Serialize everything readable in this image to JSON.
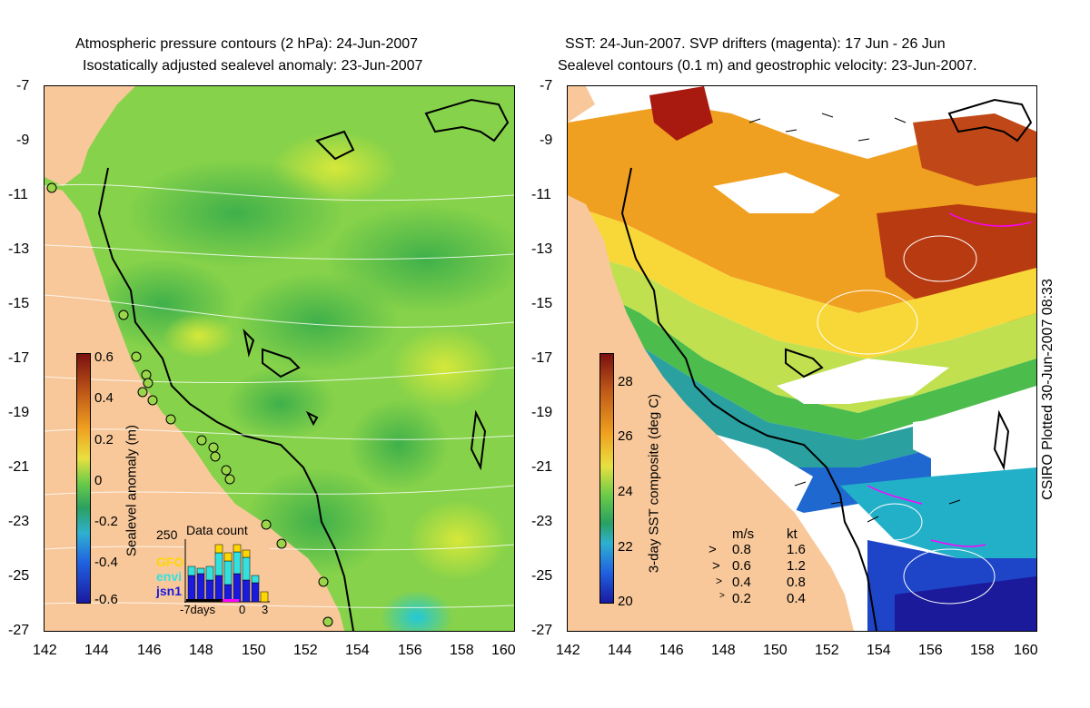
{
  "left_panel": {
    "title_line1": "Atmospheric pressure contours (2 hPa): 24-Jun-2007",
    "title_line2": "Isostatically adjusted sealevel anomaly: 23-Jun-2007",
    "colorbar": {
      "label": "Sealevel anomaly (m)",
      "ticks": [
        "0.6",
        "0.4",
        "0.2",
        "0",
        "-0.2",
        "-0.4",
        "-0.6"
      ],
      "range": [
        -0.6,
        0.6
      ]
    },
    "data_count": {
      "title": "Data count",
      "ymax_label": "250",
      "legend": [
        {
          "name": "GFO",
          "color": "#ffd700"
        },
        {
          "name": "envi",
          "color": "#33e0e0"
        },
        {
          "name": "jsn1",
          "color": "#1a1adc"
        }
      ],
      "x_labels": [
        "-7days",
        "0",
        "3"
      ]
    }
  },
  "right_panel": {
    "title_line1": "SST: 24-Jun-2007. SVP drifters (magenta): 17 Jun - 26 Jun",
    "title_line2": "Sealevel contours (0.1 m) and geostrophic velocity: 23-Jun-2007.",
    "colorbar": {
      "label": "3-day SST composite (deg C)",
      "ticks": [
        "28",
        "26",
        "24",
        "22",
        "20"
      ],
      "range": [
        20,
        29
      ]
    },
    "velocity_legend": {
      "header_ms": "m/s",
      "header_kt": "kt",
      "rows": [
        {
          "ms": "0.8",
          "kt": "1.6"
        },
        {
          "ms": "0.6",
          "kt": "1.2"
        },
        {
          "ms": "0.4",
          "kt": "0.8"
        },
        {
          "ms": "0.2",
          "kt": "0.4"
        }
      ]
    },
    "credit": "CSIRO Plotted 30-Jun-2007 08:33"
  },
  "axes": {
    "y_ticks": [
      "-7",
      "-9",
      "-11",
      "-13",
      "-15",
      "-17",
      "-19",
      "-21",
      "-23",
      "-25",
      "-27"
    ],
    "x_ticks": [
      "142",
      "144",
      "146",
      "148",
      "150",
      "152",
      "154",
      "156",
      "158",
      "160"
    ],
    "lon_range": [
      142,
      160
    ],
    "lat_range": [
      -27,
      -7
    ]
  },
  "colors": {
    "land": "#f8c89a",
    "coastline": "#000000",
    "contour": "#ffffff"
  }
}
